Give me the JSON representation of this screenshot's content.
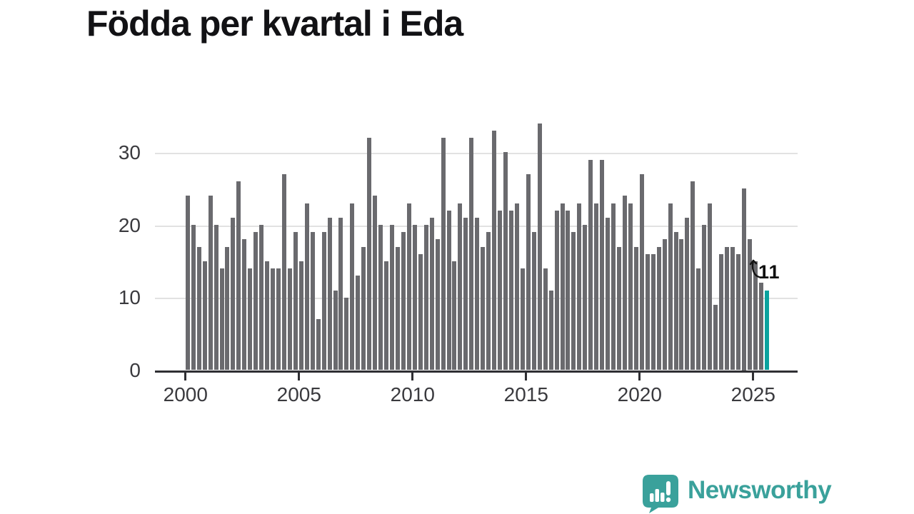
{
  "title": "Födda per kvartal i Eda",
  "annotation": {
    "label": "11"
  },
  "logo": {
    "text": "Newsworthy"
  },
  "colors": {
    "bar": "#6a6a6e",
    "highlight": "#0aa29e",
    "title": "#121215",
    "axis": "#2f2f33",
    "grid": "#e2e2e2",
    "tick_label": "#3a3a3e",
    "logo": "#3aa19b"
  },
  "chart_data": {
    "type": "bar",
    "title": "Födda per kvartal i Eda",
    "xlabel": "",
    "ylabel": "",
    "ylim": [
      0,
      35
    ],
    "yticks": [
      0,
      10,
      20,
      30
    ],
    "xticks": [
      "2000",
      "2005",
      "2010",
      "2015",
      "2020",
      "2025"
    ],
    "grid": "horizontal",
    "legend": "none",
    "highlight_index": 102,
    "highlight_label": "11",
    "x": [
      "2000 Q1",
      "2000 Q2",
      "2000 Q3",
      "2000 Q4",
      "2001 Q1",
      "2001 Q2",
      "2001 Q3",
      "2001 Q4",
      "2002 Q1",
      "2002 Q2",
      "2002 Q3",
      "2002 Q4",
      "2003 Q1",
      "2003 Q2",
      "2003 Q3",
      "2003 Q4",
      "2004 Q1",
      "2004 Q2",
      "2004 Q3",
      "2004 Q4",
      "2005 Q1",
      "2005 Q2",
      "2005 Q3",
      "2005 Q4",
      "2006 Q1",
      "2006 Q2",
      "2006 Q3",
      "2006 Q4",
      "2007 Q1",
      "2007 Q2",
      "2007 Q3",
      "2007 Q4",
      "2008 Q1",
      "2008 Q2",
      "2008 Q3",
      "2008 Q4",
      "2009 Q1",
      "2009 Q2",
      "2009 Q3",
      "2009 Q4",
      "2010 Q1",
      "2010 Q2",
      "2010 Q3",
      "2010 Q4",
      "2011 Q1",
      "2011 Q2",
      "2011 Q3",
      "2011 Q4",
      "2012 Q1",
      "2012 Q2",
      "2012 Q3",
      "2012 Q4",
      "2013 Q1",
      "2013 Q2",
      "2013 Q3",
      "2013 Q4",
      "2014 Q1",
      "2014 Q2",
      "2014 Q3",
      "2014 Q4",
      "2015 Q1",
      "2015 Q2",
      "2015 Q3",
      "2015 Q4",
      "2016 Q1",
      "2016 Q2",
      "2016 Q3",
      "2016 Q4",
      "2017 Q1",
      "2017 Q2",
      "2017 Q3",
      "2017 Q4",
      "2018 Q1",
      "2018 Q2",
      "2018 Q3",
      "2018 Q4",
      "2019 Q1",
      "2019 Q2",
      "2019 Q3",
      "2019 Q4",
      "2020 Q1",
      "2020 Q2",
      "2020 Q3",
      "2020 Q4",
      "2021 Q1",
      "2021 Q2",
      "2021 Q3",
      "2021 Q4",
      "2022 Q1",
      "2022 Q2",
      "2022 Q3",
      "2022 Q4",
      "2023 Q1",
      "2023 Q2",
      "2023 Q3",
      "2023 Q4",
      "2024 Q1",
      "2024 Q2",
      "2024 Q3",
      "2024 Q4",
      "2025 Q1",
      "2025 Q2",
      "2025 Q3"
    ],
    "values": [
      24,
      20,
      17,
      15,
      24,
      20,
      14,
      17,
      21,
      26,
      18,
      14,
      19,
      20,
      15,
      14,
      14,
      27,
      14,
      19,
      15,
      23,
      19,
      7,
      19,
      21,
      11,
      21,
      10,
      23,
      13,
      17,
      32,
      24,
      20,
      15,
      20,
      17,
      19,
      23,
      20,
      16,
      20,
      21,
      18,
      32,
      22,
      15,
      23,
      21,
      32,
      21,
      17,
      19,
      33,
      22,
      30,
      22,
      23,
      14,
      27,
      19,
      34,
      14,
      11,
      22,
      23,
      22,
      19,
      23,
      20,
      29,
      23,
      29,
      21,
      23,
      17,
      24,
      23,
      17,
      27,
      16,
      16,
      17,
      18,
      23,
      19,
      18,
      21,
      26,
      14,
      20,
      23,
      9,
      16,
      17,
      17,
      16,
      25,
      18,
      15,
      12,
      11
    ]
  }
}
